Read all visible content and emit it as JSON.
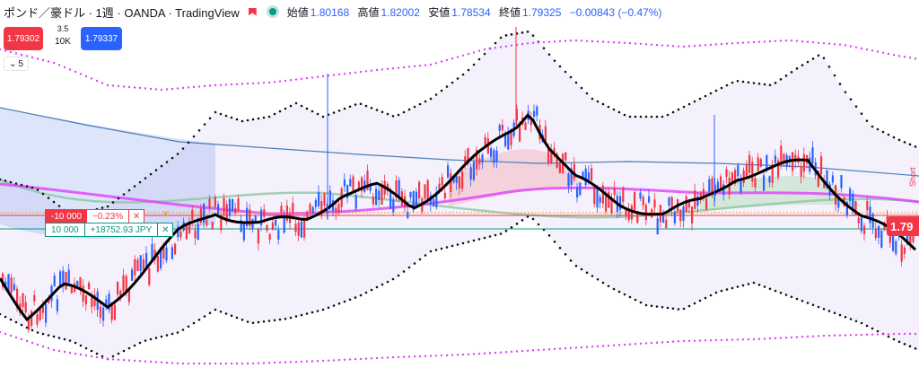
{
  "header": {
    "symbol": "ポンド／豪ドル · 1週 · OANDA · TradingView",
    "ohlc": [
      {
        "label": "始値",
        "value": "1.80168"
      },
      {
        "label": "高値",
        "value": "1.82002"
      },
      {
        "label": "安値",
        "value": "1.78534"
      },
      {
        "label": "終値",
        "value": "1.79325"
      }
    ],
    "change": "−0.00843 (−0.47%)"
  },
  "trade_panel": {
    "sell_price": "1.79302",
    "buy_price": "1.79337",
    "spread": "3.5",
    "quantity": "10K"
  },
  "indicator_toggle": {
    "count": "5"
  },
  "positions": {
    "sell": {
      "qty": "-10 000",
      "pnl": "−0.23%",
      "close": "✕"
    },
    "buy": {
      "qty": "10 000",
      "pnl": "+18752.93 JPY",
      "close": "✕"
    },
    "tp_close": "✕"
  },
  "price_scale": {
    "current_price_tag": "1.79",
    "side_label": "Short"
  },
  "colors": {
    "up": "#089981",
    "down": "#f23645",
    "accent": "#2962ff",
    "ma_black": "#000000",
    "band_magenta": "#e040fb"
  },
  "icons": {
    "alert": "red-flag-icon",
    "market_status": "green-dot-icon",
    "collapse": "chevron-down-icon",
    "close": "close-icon"
  }
}
